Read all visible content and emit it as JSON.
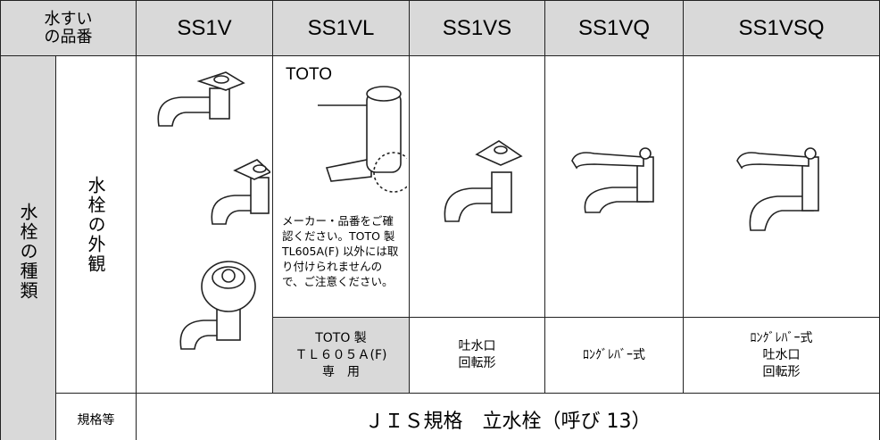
{
  "header": {
    "corner": [
      "水すい",
      "の品番"
    ],
    "models": [
      "SS1V",
      "SS1VL",
      "SS1VS",
      "SS1VQ",
      "SS1VSQ"
    ]
  },
  "side": {
    "category": "水栓の種類",
    "appearance": "水栓の外観",
    "spec_label": "規格等"
  },
  "callout": "TOTO",
  "note": [
    "メーカー・品番をご確",
    "認ください。TOTO 製",
    "TL605A(F) 以外には取",
    "り付けられませんの",
    "で、ご注意ください。"
  ],
  "captions": [
    [
      "TOTO 製",
      "ＴＬ６０５Ａ(F)",
      "専　用"
    ],
    [
      "吐水口",
      "回転形"
    ],
    [
      "ﾛﾝｸﾞﾚﾊﾞｰ式"
    ],
    [
      "ﾛﾝｸﾞﾚﾊﾞｰ式",
      "吐水口",
      "回転形"
    ]
  ],
  "spec": "ＪＩＳ規格　立水栓（呼び 13）"
}
